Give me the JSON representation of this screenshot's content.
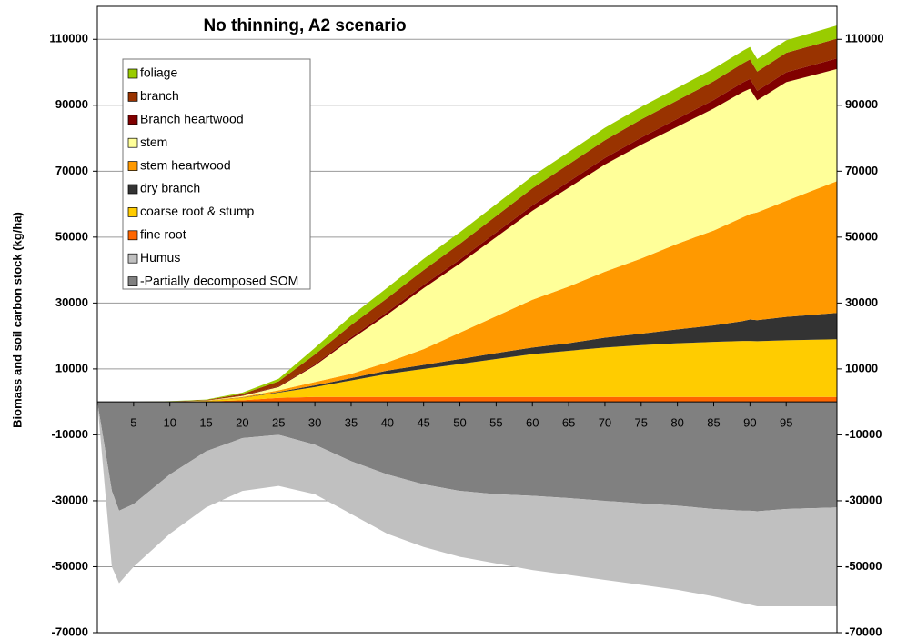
{
  "chart_data": {
    "type": "stacked_area",
    "title": "No thinning, A2 scenario",
    "ylabel": "Biomass and soil carbon stock (kg/ha)",
    "x": [
      0,
      2,
      3,
      5,
      10,
      15,
      20,
      25,
      30,
      35,
      40,
      45,
      50,
      55,
      60,
      65,
      70,
      75,
      80,
      85,
      89,
      90,
      91,
      95,
      102
    ],
    "xlim": [
      0,
      102
    ],
    "xticks": [
      5,
      10,
      15,
      20,
      25,
      30,
      35,
      40,
      45,
      50,
      55,
      60,
      65,
      70,
      75,
      80,
      85,
      90,
      95
    ],
    "ylim": [
      -70000,
      120000
    ],
    "yticks": [
      -70000,
      -50000,
      -30000,
      -10000,
      10000,
      30000,
      50000,
      70000,
      90000,
      110000
    ],
    "grid": true,
    "legend": "upper left",
    "series": [
      {
        "name": "foliage",
        "color": "#99cc00",
        "values": [
          0,
          0,
          0,
          0,
          50,
          150,
          400,
          800,
          2000,
          2800,
          3200,
          3400,
          3500,
          3600,
          3700,
          3700,
          3800,
          3800,
          3800,
          3800,
          3800,
          3800,
          3800,
          3800,
          4000
        ]
      },
      {
        "name": "branch",
        "color": "#993300",
        "values": [
          0,
          0,
          0,
          0,
          50,
          150,
          500,
          1500,
          3000,
          3700,
          4200,
          4500,
          4800,
          5000,
          5200,
          5300,
          5400,
          5500,
          5600,
          5700,
          5800,
          5900,
          5800,
          5900,
          6000
        ]
      },
      {
        "name": "Branch heartwood",
        "color": "#800000",
        "values": [
          0,
          0,
          0,
          0,
          0,
          0,
          100,
          200,
          400,
          600,
          800,
          1000,
          1200,
          1400,
          1600,
          1800,
          2000,
          2200,
          2400,
          2600,
          2900,
          3000,
          2900,
          3000,
          3200
        ]
      },
      {
        "name": "stem",
        "color": "#ffff99",
        "values": [
          0,
          0,
          0,
          0,
          40,
          50,
          300,
          1000,
          5000,
          10500,
          14500,
          18500,
          21000,
          24000,
          27000,
          30000,
          32500,
          34500,
          35500,
          37000,
          38000,
          38000,
          34000,
          36000,
          34000
        ]
      },
      {
        "name": "stem heartwood",
        "color": "#ff9900",
        "values": [
          0,
          0,
          0,
          0,
          10,
          50,
          200,
          500,
          1000,
          1300,
          2500,
          4800,
          8000,
          11200,
          14500,
          17200,
          20000,
          22800,
          26000,
          28800,
          31500,
          32000,
          32700,
          35200,
          40000
        ]
      },
      {
        "name": "dry branch",
        "color": "#333333",
        "values": [
          0,
          0,
          0,
          0,
          0,
          0,
          100,
          200,
          500,
          700,
          1000,
          1200,
          1500,
          1800,
          2000,
          2300,
          3000,
          3500,
          4200,
          5000,
          6000,
          6500,
          6400,
          7100,
          8000
        ]
      },
      {
        "name": "coarse root & stump",
        "color": "#ffcc00",
        "values": [
          0,
          0,
          0,
          0,
          50,
          200,
          700,
          1600,
          3000,
          5000,
          7000,
          8500,
          10000,
          11500,
          13000,
          14000,
          15000,
          15700,
          16300,
          16700,
          17000,
          17000,
          16900,
          17200,
          17500
        ]
      },
      {
        "name": "fine root",
        "color": "#ff6600",
        "values": [
          0,
          0,
          0,
          0,
          0,
          100,
          500,
          1200,
          1500,
          1500,
          1500,
          1500,
          1500,
          1500,
          1500,
          1500,
          1500,
          1500,
          1500,
          1500,
          1500,
          1500,
          1500,
          1500,
          1500
        ]
      },
      {
        "name": "Humus",
        "color": "#c0c0c0",
        "values": [
          0,
          -23000,
          -22000,
          -19000,
          -18000,
          -17000,
          -16000,
          -15500,
          -15000,
          -16000,
          -18000,
          -19000,
          -20000,
          -21000,
          -22500,
          -23300,
          -24000,
          -24700,
          -25500,
          -26500,
          -28000,
          -28500,
          -28800,
          -29500,
          -30000
        ]
      },
      {
        "name": "-Partially decomposed SOM",
        "color": "#808080",
        "values": [
          0,
          -27000,
          -33000,
          -31000,
          -22000,
          -15000,
          -11000,
          -10000,
          -13000,
          -18000,
          -22000,
          -25000,
          -27000,
          -28000,
          -28500,
          -29200,
          -30000,
          -30800,
          -31500,
          -32500,
          -33000,
          -33000,
          -33200,
          -32500,
          -32000
        ]
      }
    ]
  }
}
